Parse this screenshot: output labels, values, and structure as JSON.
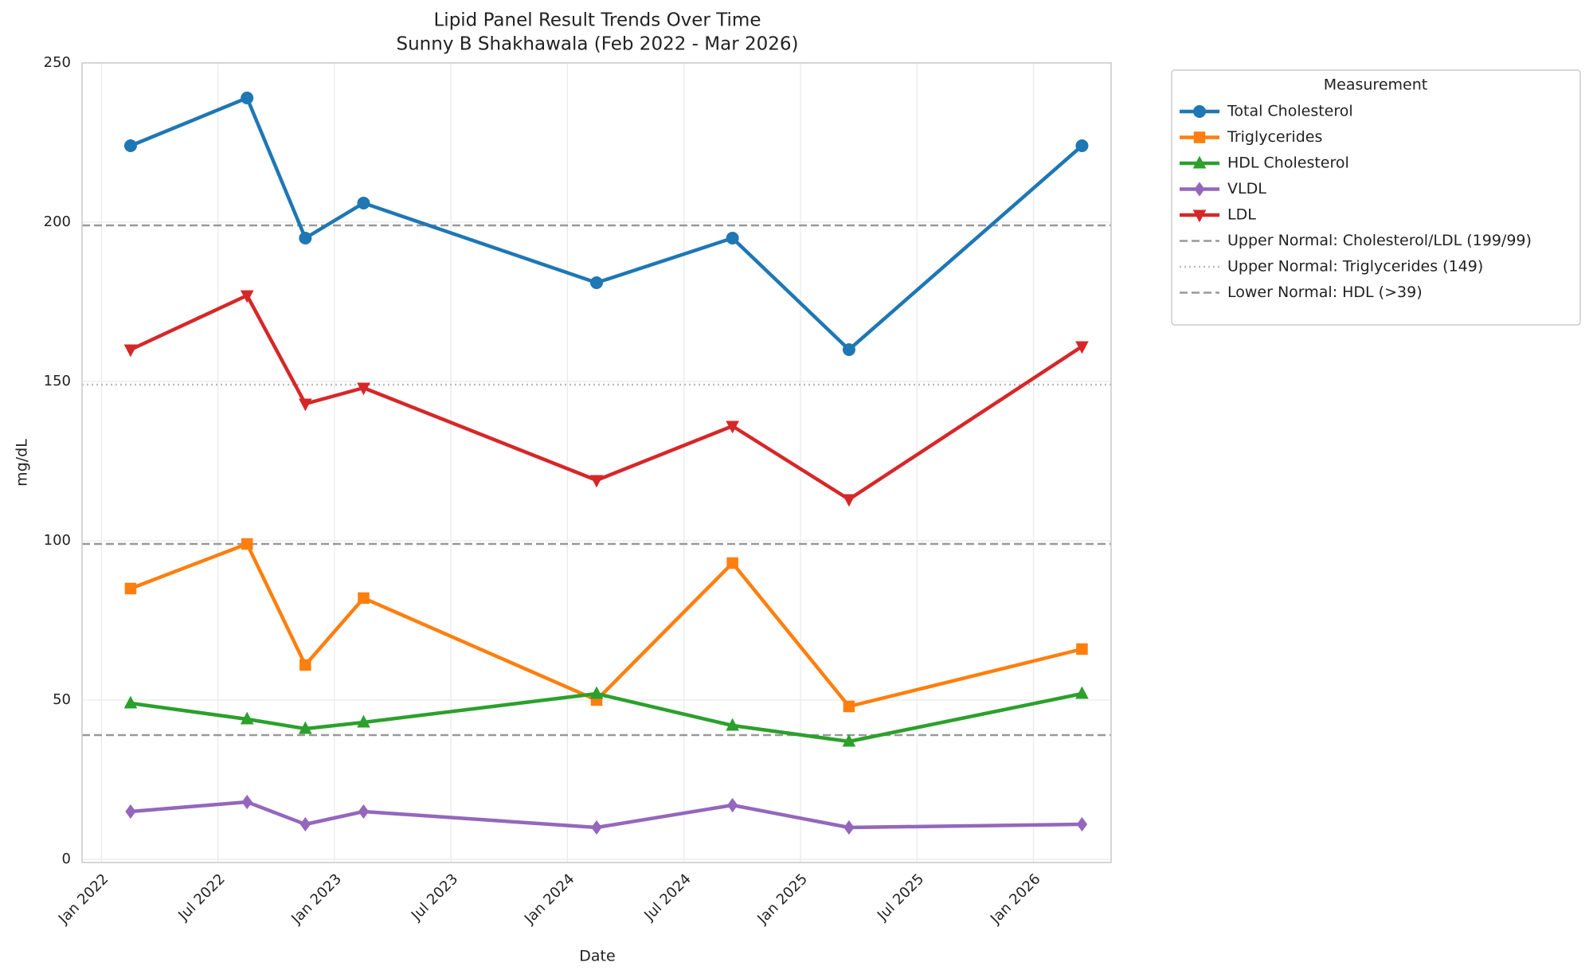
{
  "chart_data": {
    "type": "line",
    "title": "Lipid Panel Result Trends Over Time",
    "subtitle": "Sunny B Shakhawala (Feb 2022 - Mar 2026)",
    "x_label": "Date",
    "y_label": "mg/dL",
    "x": [
      "2022-02",
      "2022-08",
      "2022-11",
      "2023-02",
      "2024-02",
      "2024-09",
      "2025-03",
      "2026-03"
    ],
    "series": [
      {
        "name": "Total Cholesterol",
        "color": "#1f77b4",
        "marker": "circle",
        "values": [
          224,
          239,
          195,
          206,
          181,
          195,
          160,
          224
        ]
      },
      {
        "name": "Triglycerides",
        "color": "#ff7f0e",
        "marker": "square",
        "values": [
          85,
          99,
          61,
          82,
          50,
          93,
          48,
          66
        ]
      },
      {
        "name": "HDL Cholesterol",
        "color": "#2ca02c",
        "marker": "triangle-up",
        "values": [
          49,
          44,
          41,
          43,
          52,
          42,
          37,
          52
        ]
      },
      {
        "name": "VLDL",
        "color": "#9467bd",
        "marker": "diamond",
        "values": [
          15,
          18,
          11,
          15,
          10,
          17,
          10,
          11
        ]
      },
      {
        "name": "LDL",
        "color": "#d62728",
        "marker": "triangle-down",
        "values": [
          160,
          177,
          143,
          148,
          119,
          136,
          113,
          161
        ]
      }
    ],
    "reference_lines": [
      {
        "name": "Upper Normal: Cholesterol/LDL (199/99)",
        "values": [
          199,
          99
        ],
        "style": "dashed",
        "color": "#999999"
      },
      {
        "name": "Upper Normal: Triglycerides (149)",
        "values": [
          149
        ],
        "style": "dotted",
        "color": "#bbbbbb"
      },
      {
        "name": "Lower Normal: HDL (>39)",
        "values": [
          39
        ],
        "style": "dashed",
        "color": "#999999"
      }
    ],
    "xlim": [
      "2021-12",
      "2026-05"
    ],
    "xticks": [
      {
        "value": "2022-01",
        "label": "Jan 2022"
      },
      {
        "value": "2022-07",
        "label": "Jul 2022"
      },
      {
        "value": "2023-01",
        "label": "Jan 2023"
      },
      {
        "value": "2023-07",
        "label": "Jul 2023"
      },
      {
        "value": "2024-01",
        "label": "Jan 2024"
      },
      {
        "value": "2024-07",
        "label": "Jul 2024"
      },
      {
        "value": "2025-01",
        "label": "Jan 2025"
      },
      {
        "value": "2025-07",
        "label": "Jul 2025"
      },
      {
        "value": "2026-01",
        "label": "Jan 2026"
      }
    ],
    "ylim": [
      -1,
      250
    ],
    "yticks": [
      0,
      50,
      100,
      150,
      200,
      250
    ],
    "grid": true,
    "legend_title": "Measurement",
    "legend": "outside right"
  }
}
